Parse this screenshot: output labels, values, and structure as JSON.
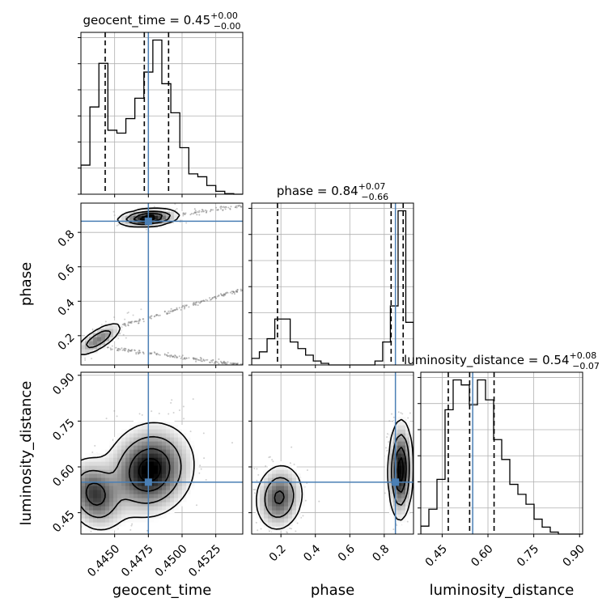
{
  "chart_data": {
    "type": "corner",
    "parameters": [
      "geocent_time",
      "phase",
      "luminosity_distance"
    ],
    "titles": [
      {
        "param": "geocent_time",
        "text": "geocent_time = 0.45",
        "sup": "+0.00",
        "sub": "−0.00"
      },
      {
        "param": "phase",
        "text": "phase = 0.84",
        "sup": "+0.07",
        "sub": "−0.66"
      },
      {
        "param": "luminosity_distance",
        "text": "luminosity_distance = 0.54",
        "sup": "+0.08",
        "sub": "−0.07"
      }
    ],
    "axis_labels": {
      "x": [
        "geocent_time",
        "phase",
        "luminosity_distance"
      ],
      "y": [
        "phase",
        "luminosity_distance"
      ]
    },
    "ranges": {
      "geocent_time": [
        0.4425,
        0.4545
      ],
      "phase": [
        0.03,
        0.97
      ],
      "luminosity_distance": [
        0.38,
        0.91
      ]
    },
    "ticks": {
      "geocent_time": [
        0.445,
        0.4475,
        0.45,
        0.4525
      ],
      "phase": [
        0.2,
        0.4,
        0.6,
        0.8
      ],
      "luminosity_distance": [
        0.45,
        0.6,
        0.75,
        0.9
      ]
    },
    "tick_labels": {
      "geocent_time": [
        "0.4450",
        "0.4475",
        "0.4500",
        "0.4525"
      ],
      "phase": [
        "0.2",
        "0.4",
        "0.6",
        "0.8"
      ],
      "luminosity_distance": [
        "0.45",
        "0.60",
        "0.75",
        "0.90"
      ]
    },
    "truths": {
      "geocent_time": 0.4475,
      "phase": 0.865,
      "luminosity_distance": 0.55
    },
    "quantiles": {
      "geocent_time": [
        0.4443,
        0.4472,
        0.449
      ],
      "phase": [
        0.18,
        0.84,
        0.91
      ],
      "luminosity_distance": [
        0.47,
        0.54,
        0.62
      ]
    },
    "histograms": {
      "geocent_time": {
        "range": [
          0.4425,
          0.4545
        ],
        "counts": [
          0.1,
          0.3,
          0.45,
          0.22,
          0.21,
          0.26,
          0.33,
          0.42,
          0.53,
          0.38,
          0.28,
          0.16,
          0.07,
          0.06,
          0.03,
          0.01,
          0.002,
          0.0
        ]
      },
      "phase": {
        "range": [
          0.03,
          0.97
        ],
        "counts": [
          0.02,
          0.04,
          0.08,
          0.14,
          0.14,
          0.07,
          0.05,
          0.03,
          0.012,
          0.005,
          0.0,
          0.0,
          0.0,
          0.0,
          0.0,
          0.0,
          0.012,
          0.07,
          0.18,
          0.47,
          0.13
        ]
      },
      "luminosity_distance": {
        "range": [
          0.38,
          0.91
        ],
        "counts": [
          0.008,
          0.025,
          0.055,
          0.125,
          0.155,
          0.15,
          0.13,
          0.155,
          0.135,
          0.095,
          0.075,
          0.05,
          0.04,
          0.03,
          0.015,
          0.007,
          0.002,
          0.0,
          0.0,
          0.0
        ]
      }
    },
    "pairs": [
      {
        "x": "geocent_time",
        "y": "phase"
      },
      {
        "x": "geocent_time",
        "y": "luminosity_distance"
      },
      {
        "x": "phase",
        "y": "luminosity_distance"
      }
    ],
    "grid": true
  }
}
